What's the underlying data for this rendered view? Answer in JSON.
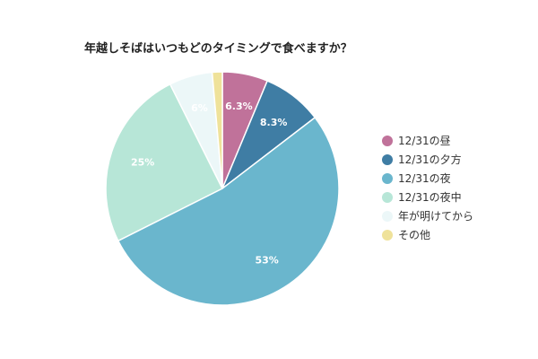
{
  "chart_data": {
    "type": "pie",
    "title": "年越しそばはいつもどのタイミングで食べますか？",
    "slices": [
      {
        "label": "12/31の昼",
        "value": 6.3,
        "display": "6.3%",
        "color": "#c0729a"
      },
      {
        "label": "12/31の夕方",
        "value": 8.3,
        "display": "8.3%",
        "color": "#3f7da4"
      },
      {
        "label": "12/31の夜",
        "value": 53,
        "display": "53%",
        "color": "#6ab6cd"
      },
      {
        "label": "12/31の夜中",
        "value": 25,
        "display": "25%",
        "color": "#b7e6d7"
      },
      {
        "label": "年が明けてから",
        "value": 6,
        "display": "6%",
        "color": "#ecf7f8"
      },
      {
        "label": "その他",
        "value": 1.4,
        "display": "",
        "color": "#efe29a"
      }
    ],
    "legend_position": "right"
  }
}
